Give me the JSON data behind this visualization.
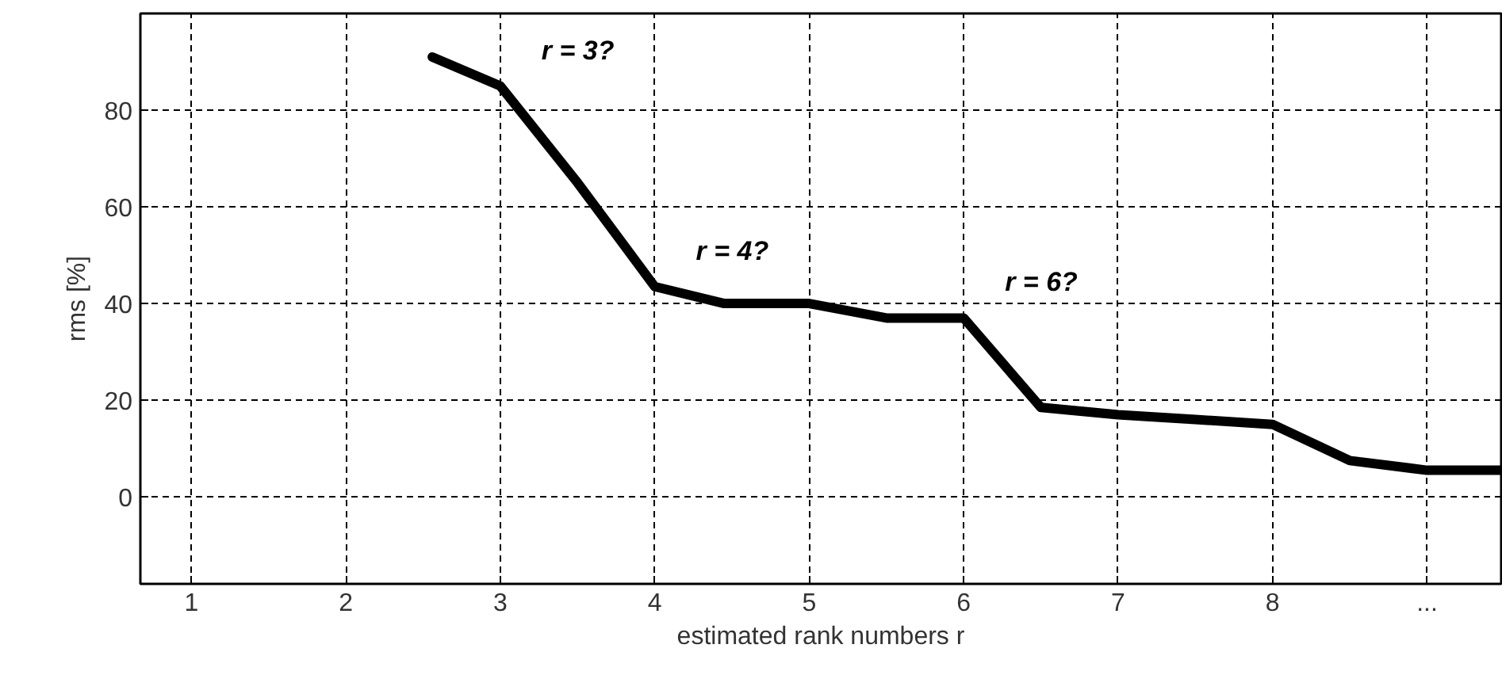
{
  "chart_data": {
    "type": "line",
    "xlabel": "estimated rank numbers r",
    "ylabel": "rms [%]",
    "x": [
      2.56,
      3,
      3.5,
      4,
      4.45,
      5,
      5.5,
      6,
      6.5,
      7,
      7.5,
      8,
      8.5,
      9,
      9.48
    ],
    "series": [
      {
        "color": "#000000",
        "values": [
          91,
          85,
          65,
          43.5,
          40,
          40,
          37,
          37,
          18.5,
          17,
          16,
          15,
          7.5,
          5.5,
          5.5
        ]
      }
    ],
    "xlim": [
      0.67,
      9.48
    ],
    "ylim": [
      -18,
      100
    ],
    "xticks": [
      1,
      2,
      3,
      4,
      5,
      6,
      7,
      8,
      {
        "value": 9,
        "label": "..."
      }
    ],
    "yticks": [
      0,
      20,
      40,
      60,
      80
    ],
    "annotations": [
      {
        "text": "r = 3?",
        "x": 3,
        "y": 85
      },
      {
        "text": "r = 4?",
        "x": 4,
        "y": 43.5
      },
      {
        "text": "r = 6?",
        "x": 6,
        "y": 37
      }
    ],
    "grid": true,
    "line_style": "solid",
    "marker": "none"
  }
}
